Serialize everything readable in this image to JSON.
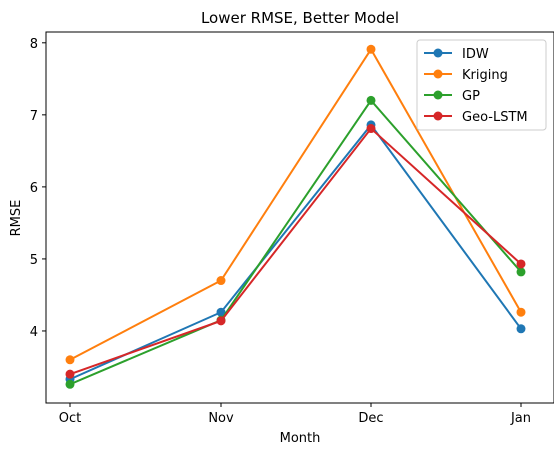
{
  "chart_data": {
    "type": "line",
    "title": "Lower RMSE, Better Model",
    "xlabel": "Month",
    "ylabel": "RMSE",
    "categories": [
      "Oct",
      "Nov",
      "Dec",
      "Jan"
    ],
    "ylim": [
      3.0,
      8.15
    ],
    "yticks": [
      4,
      5,
      6,
      7,
      8
    ],
    "grid": false,
    "legend_position": "top-right",
    "series": [
      {
        "name": "IDW",
        "color": "#1f77b4",
        "values": [
          3.33,
          4.26,
          6.86,
          4.03
        ]
      },
      {
        "name": "Kriging",
        "color": "#ff7f0e",
        "values": [
          3.6,
          4.7,
          7.91,
          4.26
        ]
      },
      {
        "name": "GP",
        "color": "#2ca02c",
        "values": [
          3.26,
          4.15,
          7.2,
          4.82
        ]
      },
      {
        "name": "Geo-LSTM",
        "color": "#d62728",
        "values": [
          3.4,
          4.14,
          6.81,
          4.93
        ]
      }
    ]
  }
}
